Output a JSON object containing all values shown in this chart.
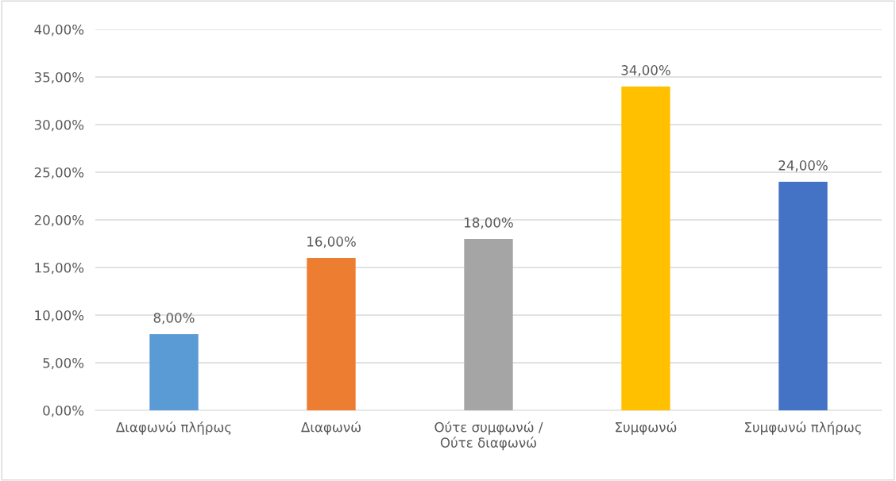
{
  "chart_data": {
    "type": "bar",
    "categories": [
      "Διαφωνώ πλήρως",
      "Διαφωνώ",
      "Ούτε συμφωνώ /\nΟύτε διαφωνώ",
      "Συμφωνώ",
      "Συμφωνώ πλήρως"
    ],
    "values": [
      8,
      16,
      18,
      34,
      24
    ],
    "colors": [
      "#5b9bd5",
      "#ed7d31",
      "#a5a5a5",
      "#ffc000",
      "#4472c4"
    ],
    "value_labels": [
      "8,00%",
      "16,00%",
      "18,00%",
      "34,00%",
      "24,00%"
    ],
    "ylim": [
      0,
      40
    ],
    "yticks": [
      {
        "value": 0,
        "label": "0,00%"
      },
      {
        "value": 5,
        "label": "5,00%"
      },
      {
        "value": 10,
        "label": "10,00%"
      },
      {
        "value": 15,
        "label": "15,00%"
      },
      {
        "value": 20,
        "label": "20,00%"
      },
      {
        "value": 25,
        "label": "25,00%"
      },
      {
        "value": 30,
        "label": "30,00%"
      },
      {
        "value": 35,
        "label": "35,00%"
      },
      {
        "value": 40,
        "label": "40,00%"
      }
    ],
    "grid": "y",
    "legend": false
  }
}
